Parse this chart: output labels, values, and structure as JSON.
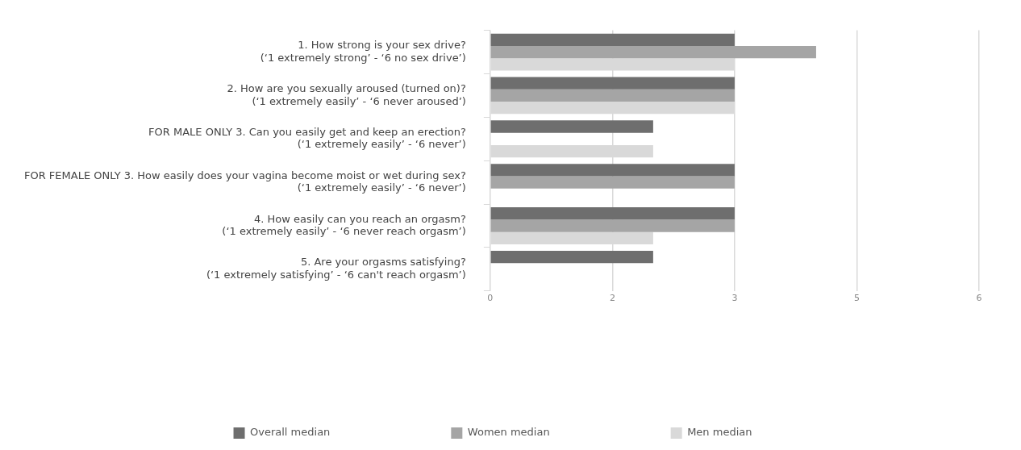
{
  "chart_data": {
    "type": "bar",
    "orientation": "horizontal",
    "categories": [
      "1. How strong is your sex drive?\n(‘1 extremely strong’ - ‘6 no sex drive’)",
      "2. How are you sexually aroused (turned on)?\n(‘1 extremely easily’ - ‘6 never aroused’)",
      "FOR MALE ONLY 3. Can you easily get and keep an erection?\n(‘1 extremely easily’ - ‘6 never’)",
      "FOR FEMALE ONLY 3. How easily does your vagina become moist or wet during sex?\n(‘1 extremely easily’ - ‘6 never’)",
      "4. How easily can you reach an orgasm?\n(‘1 extremely easily’ - ‘6 never reach orgasm’)",
      "5. Are your orgasms satisfying?\n(‘1 extremely satisfying’ - ‘6 can't reach orgasm’)"
    ],
    "series": [
      {
        "name": "Overall median",
        "color": "#6e6e6e",
        "values": [
          3,
          3,
          2,
          3,
          3,
          2
        ]
      },
      {
        "name": "Women median",
        "color": "#a5a5a5",
        "values": [
          4,
          3,
          null,
          3,
          3,
          null
        ]
      },
      {
        "name": "Men median",
        "color": "#d9d9d9",
        "values": [
          3,
          3,
          2,
          null,
          2,
          null
        ]
      }
    ],
    "xlim": [
      0,
      6
    ],
    "xticks": [
      0,
      {
        "value": 1.5,
        "label": "2"
      },
      3,
      {
        "value": 4.5,
        "label": "5"
      },
      6
    ],
    "grid": "x",
    "legend": "bottom"
  }
}
